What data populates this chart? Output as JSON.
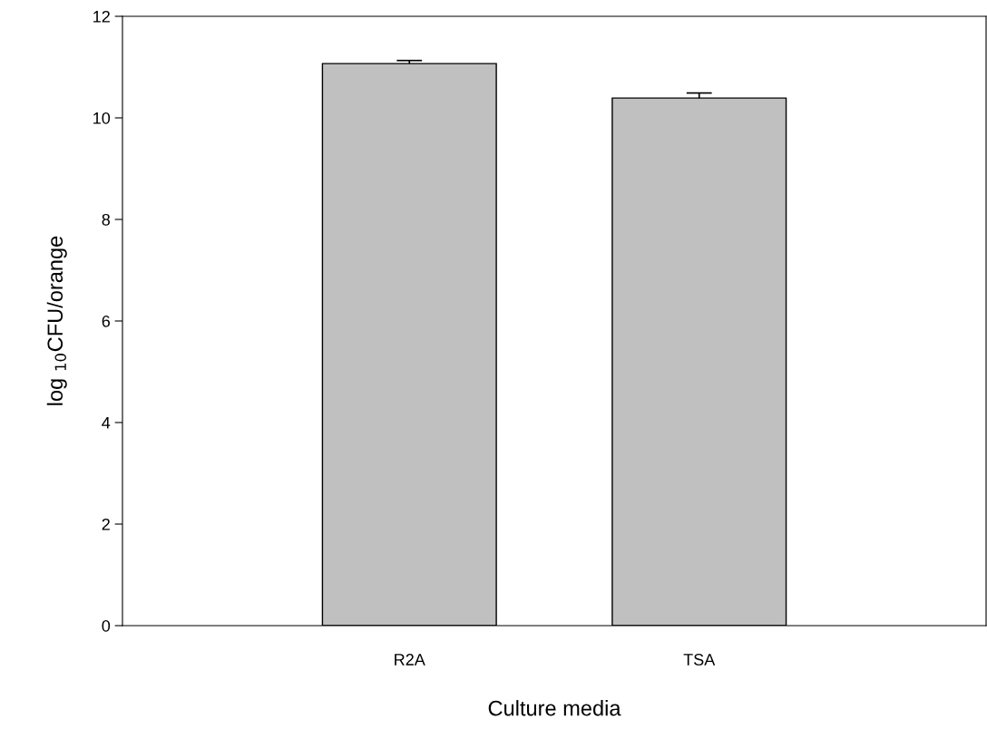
{
  "chart_data": {
    "type": "bar",
    "xlabel": "Culture media",
    "ylabel": "log $_{10}$CFU/orange",
    "categories": [
      "R2A",
      "TSA"
    ],
    "values": [
      11.07,
      10.39
    ],
    "errors": [
      0.06,
      0.1
    ],
    "color": "#c0c0c0",
    "ylim": [
      0,
      12
    ],
    "yticks": [
      0,
      2,
      4,
      6,
      8,
      10,
      12
    ],
    "grid": false
  }
}
